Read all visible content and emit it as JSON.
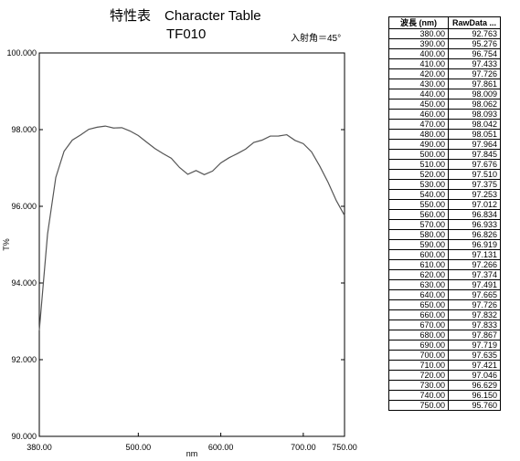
{
  "chart_data": {
    "type": "line",
    "title": "特性表　Character Table",
    "subtitle": "TF010",
    "annotation": "入射角＝45°",
    "x_label": "nm",
    "y_label": "T%",
    "x": [
      380,
      390,
      400,
      410,
      420,
      430,
      440,
      450,
      460,
      470,
      480,
      490,
      500,
      510,
      520,
      530,
      540,
      550,
      560,
      570,
      580,
      590,
      600,
      610,
      620,
      630,
      640,
      650,
      660,
      670,
      680,
      690,
      700,
      710,
      720,
      730,
      740,
      750
    ],
    "series": [
      {
        "name": "RawData",
        "color": "#555555",
        "values": [
          92.763,
          95.276,
          96.754,
          97.433,
          97.726,
          97.861,
          98.009,
          98.062,
          98.093,
          98.042,
          98.051,
          97.964,
          97.845,
          97.676,
          97.51,
          97.375,
          97.253,
          97.012,
          96.834,
          96.933,
          96.826,
          96.919,
          97.131,
          97.266,
          97.374,
          97.491,
          97.665,
          97.726,
          97.832,
          97.833,
          97.867,
          97.719,
          97.635,
          97.421,
          97.046,
          96.629,
          96.15,
          95.76
        ]
      }
    ],
    "xlim": [
      380,
      750
    ],
    "ylim": [
      90,
      100
    ],
    "xticks": [
      {
        "value": 380,
        "label": "380.00"
      },
      {
        "value": 500,
        "label": "500.00"
      },
      {
        "value": 600,
        "label": "600.00"
      },
      {
        "value": 700,
        "label": "700.00"
      },
      {
        "value": 750,
        "label": "750.00"
      }
    ],
    "yticks": [
      {
        "value": 90,
        "label": "90.000"
      },
      {
        "value": 92,
        "label": "92.000"
      },
      {
        "value": 94,
        "label": "94.000"
      },
      {
        "value": 96,
        "label": "96.000"
      },
      {
        "value": 98,
        "label": "98.000"
      },
      {
        "value": 100,
        "label": "100.000"
      }
    ]
  },
  "table": {
    "header": [
      "波長 (nm)",
      "RawData ..."
    ],
    "rows": [
      [
        "380.00",
        "92.763"
      ],
      [
        "390.00",
        "95.276"
      ],
      [
        "400.00",
        "96.754"
      ],
      [
        "410.00",
        "97.433"
      ],
      [
        "420.00",
        "97.726"
      ],
      [
        "430.00",
        "97.861"
      ],
      [
        "440.00",
        "98.009"
      ],
      [
        "450.00",
        "98.062"
      ],
      [
        "460.00",
        "98.093"
      ],
      [
        "470.00",
        "98.042"
      ],
      [
        "480.00",
        "98.051"
      ],
      [
        "490.00",
        "97.964"
      ],
      [
        "500.00",
        "97.845"
      ],
      [
        "510.00",
        "97.676"
      ],
      [
        "520.00",
        "97.510"
      ],
      [
        "530.00",
        "97.375"
      ],
      [
        "540.00",
        "97.253"
      ],
      [
        "550.00",
        "97.012"
      ],
      [
        "560.00",
        "96.834"
      ],
      [
        "570.00",
        "96.933"
      ],
      [
        "580.00",
        "96.826"
      ],
      [
        "590.00",
        "96.919"
      ],
      [
        "600.00",
        "97.131"
      ],
      [
        "610.00",
        "97.266"
      ],
      [
        "620.00",
        "97.374"
      ],
      [
        "630.00",
        "97.491"
      ],
      [
        "640.00",
        "97.665"
      ],
      [
        "650.00",
        "97.726"
      ],
      [
        "660.00",
        "97.832"
      ],
      [
        "670.00",
        "97.833"
      ],
      [
        "680.00",
        "97.867"
      ],
      [
        "690.00",
        "97.719"
      ],
      [
        "700.00",
        "97.635"
      ],
      [
        "710.00",
        "97.421"
      ],
      [
        "720.00",
        "97.046"
      ],
      [
        "730.00",
        "96.629"
      ],
      [
        "740.00",
        "96.150"
      ],
      [
        "750.00",
        "95.760"
      ]
    ]
  }
}
